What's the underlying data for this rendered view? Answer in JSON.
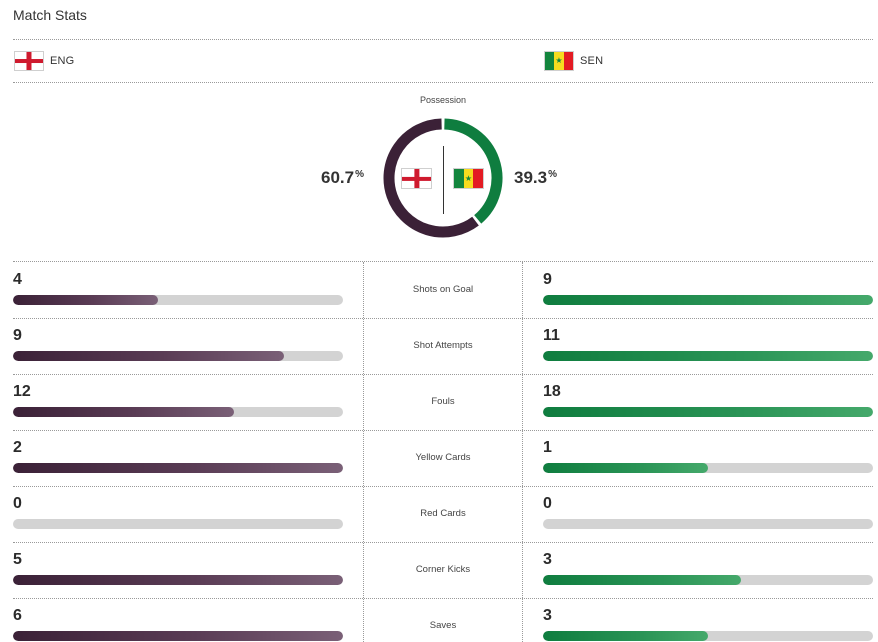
{
  "header": {
    "title": "Match Stats"
  },
  "teams": {
    "home": {
      "code": "ENG",
      "flag_icon": "england-flag-icon",
      "color": "#3b2137"
    },
    "away": {
      "code": "SEN",
      "flag_icon": "senegal-flag-icon",
      "color": "#0f7d3f"
    }
  },
  "possession": {
    "label": "Possession",
    "home_value": "60.7",
    "away_value": "39.3",
    "unit": "%",
    "home_fraction": 0.607,
    "away_fraction": 0.393
  },
  "stats": [
    {
      "label": "Shots on Goal",
      "home": 4,
      "away": 9,
      "home_fill": 0.44,
      "away_fill": 1.0
    },
    {
      "label": "Shot Attempts",
      "home": 9,
      "away": 11,
      "home_fill": 0.82,
      "away_fill": 1.0
    },
    {
      "label": "Fouls",
      "home": 12,
      "away": 18,
      "home_fill": 0.67,
      "away_fill": 1.0
    },
    {
      "label": "Yellow Cards",
      "home": 2,
      "away": 1,
      "home_fill": 1.0,
      "away_fill": 0.5
    },
    {
      "label": "Red Cards",
      "home": 0,
      "away": 0,
      "home_fill": 0,
      "away_fill": 0
    },
    {
      "label": "Corner Kicks",
      "home": 5,
      "away": 3,
      "home_fill": 1.0,
      "away_fill": 0.6
    },
    {
      "label": "Saves",
      "home": 6,
      "away": 3,
      "home_fill": 1.0,
      "away_fill": 0.5
    }
  ]
}
